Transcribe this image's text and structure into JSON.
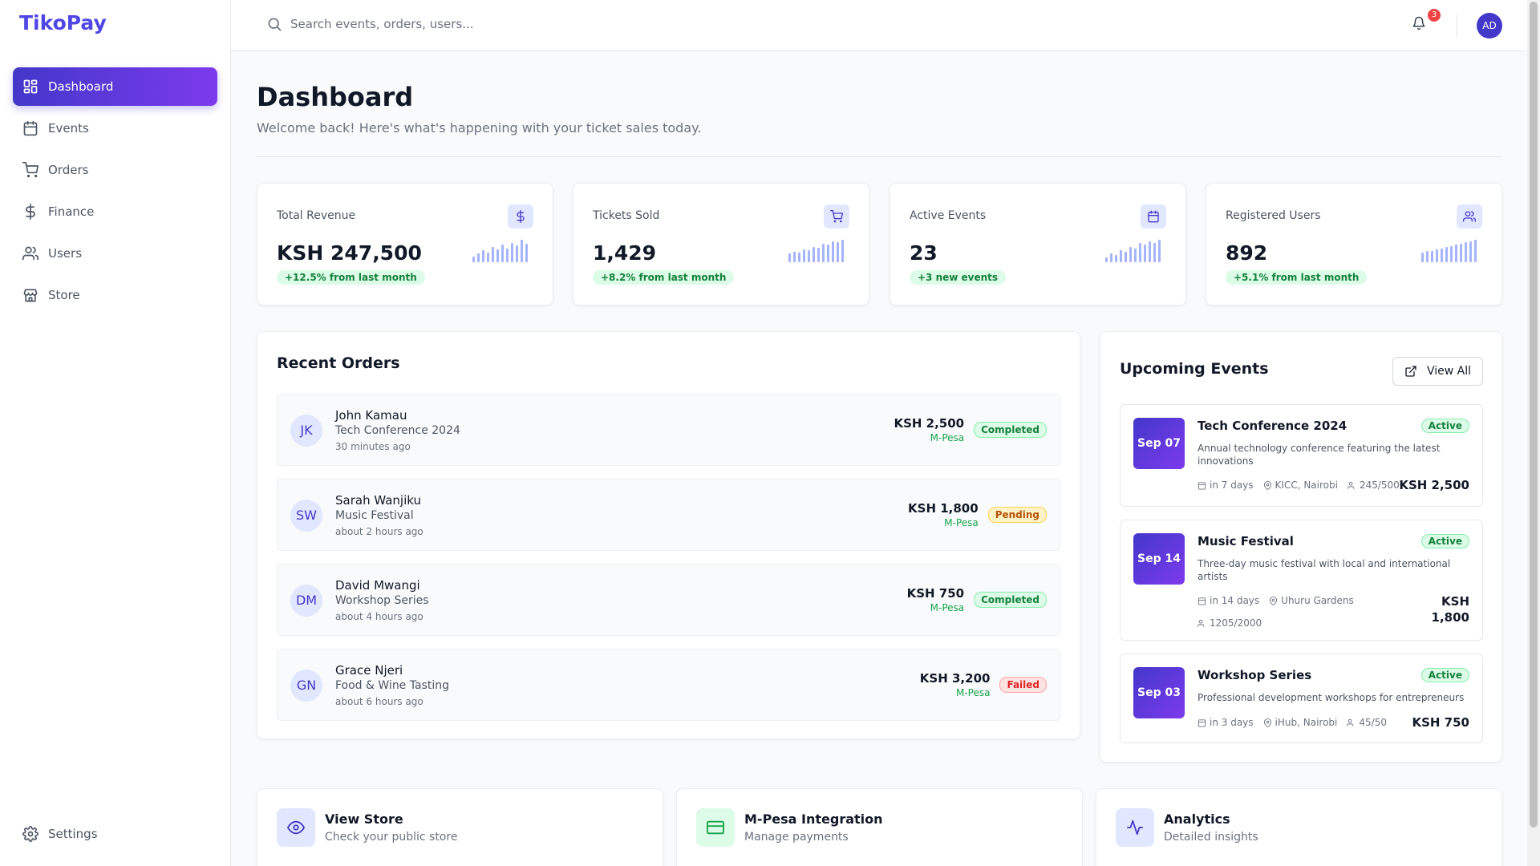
{
  "brand": "TikoPay",
  "colors": {
    "accent": "#4f46e5",
    "success": "#16a34a",
    "warning": "#b45309",
    "danger": "#dc2626"
  },
  "sidebar": {
    "items": [
      {
        "label": "Dashboard",
        "icon": "dashboard-icon",
        "active": true
      },
      {
        "label": "Events",
        "icon": "calendar-icon"
      },
      {
        "label": "Orders",
        "icon": "cart-icon"
      },
      {
        "label": "Finance",
        "icon": "dollar-icon"
      },
      {
        "label": "Users",
        "icon": "users-icon"
      },
      {
        "label": "Store",
        "icon": "store-icon"
      }
    ],
    "settings_label": "Settings"
  },
  "topbar": {
    "search_placeholder": "Search events, orders, users...",
    "notification_count": "3",
    "user_initials": "AD"
  },
  "header": {
    "title": "Dashboard",
    "subtitle": "Welcome back! Here's what's happening with your ticket sales today."
  },
  "stats": [
    {
      "label": "Total Revenue",
      "value": "KSH 247,500",
      "change": "+12.5% from last month",
      "icon": "dollar-icon",
      "trend": [
        6,
        9,
        12,
        10,
        16,
        13,
        18,
        14,
        20,
        17,
        23,
        19
      ]
    },
    {
      "label": "Tickets Sold",
      "value": "1,429",
      "change": "+8.2% from last month",
      "icon": "cart-icon",
      "trend": [
        10,
        12,
        11,
        15,
        14,
        18,
        17,
        21,
        20,
        24,
        23,
        26
      ]
    },
    {
      "label": "Active Events",
      "value": "23",
      "change": "+3 new events",
      "icon": "calendar-icon",
      "trend": [
        3,
        5,
        4,
        7,
        6,
        9,
        8,
        11,
        10,
        12,
        11,
        13
      ]
    },
    {
      "label": "Registered Users",
      "value": "892",
      "change": "+5.1% from last month",
      "icon": "users-icon",
      "trend": [
        12,
        14,
        15,
        17,
        18,
        20,
        21,
        23,
        24,
        26,
        27,
        29
      ]
    }
  ],
  "orders": {
    "title": "Recent Orders",
    "items": [
      {
        "initials": "JK",
        "name": "John Kamau",
        "event": "Tech Conference 2024",
        "time": "30 minutes ago",
        "amount": "KSH 2,500",
        "method": "M-Pesa",
        "status": "Completed",
        "status_key": "completed"
      },
      {
        "initials": "SW",
        "name": "Sarah Wanjiku",
        "event": "Music Festival",
        "time": "about 2 hours ago",
        "amount": "KSH 1,800",
        "method": "M-Pesa",
        "status": "Pending",
        "status_key": "pending"
      },
      {
        "initials": "DM",
        "name": "David Mwangi",
        "event": "Workshop Series",
        "time": "about 4 hours ago",
        "amount": "KSH 750",
        "method": "M-Pesa",
        "status": "Completed",
        "status_key": "completed"
      },
      {
        "initials": "GN",
        "name": "Grace Njeri",
        "event": "Food & Wine Tasting",
        "time": "about 6 hours ago",
        "amount": "KSH 3,200",
        "method": "M-Pesa",
        "status": "Failed",
        "status_key": "failed"
      }
    ]
  },
  "events": {
    "title": "Upcoming Events",
    "view_all": "View All",
    "items": [
      {
        "date": "Sep 07",
        "title": "Tech Conference 2024",
        "status": "Active",
        "desc": "Annual technology conference featuring the latest innovations",
        "when": "in 7 days",
        "where": "KICC, Nairobi",
        "capacity": "245/500",
        "price": "KSH 2,500"
      },
      {
        "date": "Sep 14",
        "title": "Music Festival",
        "status": "Active",
        "desc": "Three-day music festival with local and international artists",
        "when": "in 14 days",
        "where": "Uhuru Gardens",
        "capacity": "1205/2000",
        "price_line1": "KSH",
        "price_line2": "1,800"
      },
      {
        "date": "Sep 03",
        "title": "Workshop Series",
        "status": "Active",
        "desc": "Professional development workshops for entrepreneurs",
        "when": "in 3 days",
        "where": "iHub, Nairobi",
        "capacity": "45/50",
        "price": "KSH 750"
      }
    ]
  },
  "quick_actions": [
    {
      "title": "View Store",
      "subtitle": "Check your public store",
      "icon": "eye-icon",
      "bg": "#e0e7ff",
      "fg": "#4338ca"
    },
    {
      "title": "M-Pesa Integration",
      "subtitle": "Manage payments",
      "icon": "credit-card-icon",
      "bg": "#dcfce7",
      "fg": "#16a34a"
    },
    {
      "title": "Analytics",
      "subtitle": "Detailed insights",
      "icon": "activity-icon",
      "bg": "#e0e7ff",
      "fg": "#4338ca"
    }
  ]
}
